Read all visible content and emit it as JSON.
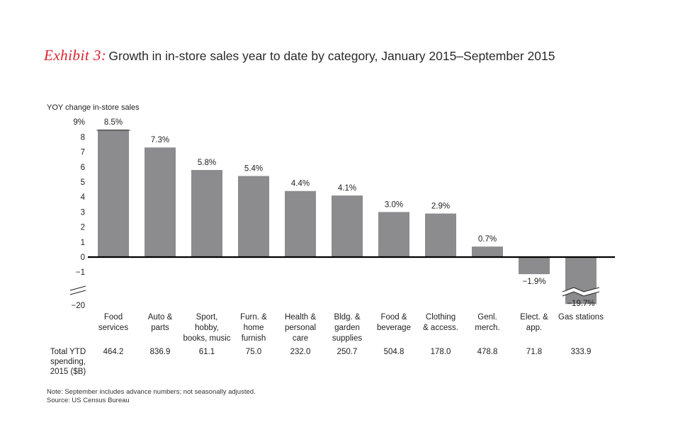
{
  "header": {
    "exhibit": "Exhibit 3:",
    "title": "Growth in in-store sales year to date by category, January 2015–September 2015"
  },
  "chart_data": {
    "type": "bar",
    "title": "Growth in in-store sales year to date by category, January 2015–September 2015",
    "ylabel": "YOY change in-store sales",
    "xlabel": "",
    "y_ticks": [
      "9%",
      "8",
      "7",
      "6",
      "5",
      "4",
      "3",
      "2",
      "1",
      "0",
      "−1",
      "−20"
    ],
    "ylim": [
      -20,
      9
    ],
    "axis_break": "between −1 and −20",
    "categories": [
      [
        "Food",
        "services"
      ],
      [
        "Auto &",
        "parts"
      ],
      [
        "Sport,",
        "hobby,",
        "books, music"
      ],
      [
        "Furn. &",
        "home",
        "furnish"
      ],
      [
        "Health &",
        "personal",
        "care"
      ],
      [
        "Bldg. &",
        "garden",
        "supplies"
      ],
      [
        "Food &",
        "beverage"
      ],
      [
        "Clothing",
        "& access."
      ],
      [
        "Genl.",
        "merch."
      ],
      [
        "Elect. &",
        "app."
      ],
      [
        "Gas stations"
      ]
    ],
    "values": [
      8.5,
      7.3,
      5.8,
      5.4,
      4.4,
      4.1,
      3.0,
      2.9,
      0.7,
      -1.9,
      -19.7
    ],
    "value_labels": [
      "8.5%",
      "7.3%",
      "5.8%",
      "5.4%",
      "4.4%",
      "4.1%",
      "3.0%",
      "2.9%",
      "0.7%",
      "−1.9%",
      "−19.7%"
    ],
    "spending_label": [
      "Total YTD",
      "spending,",
      "2015 ($B)"
    ],
    "spending": [
      "464.2",
      "836.9",
      "61.1",
      "75.0",
      "232.0",
      "250.7",
      "504.8",
      "178.0",
      "478.8",
      "71.8",
      "333.9"
    ],
    "bar_color": "#8c8c8e",
    "axis_color": "#000000"
  },
  "footer": {
    "note": "Note: September includes advance numbers; not seasonally adjusted.",
    "source": "Source: US Census Bureau"
  }
}
